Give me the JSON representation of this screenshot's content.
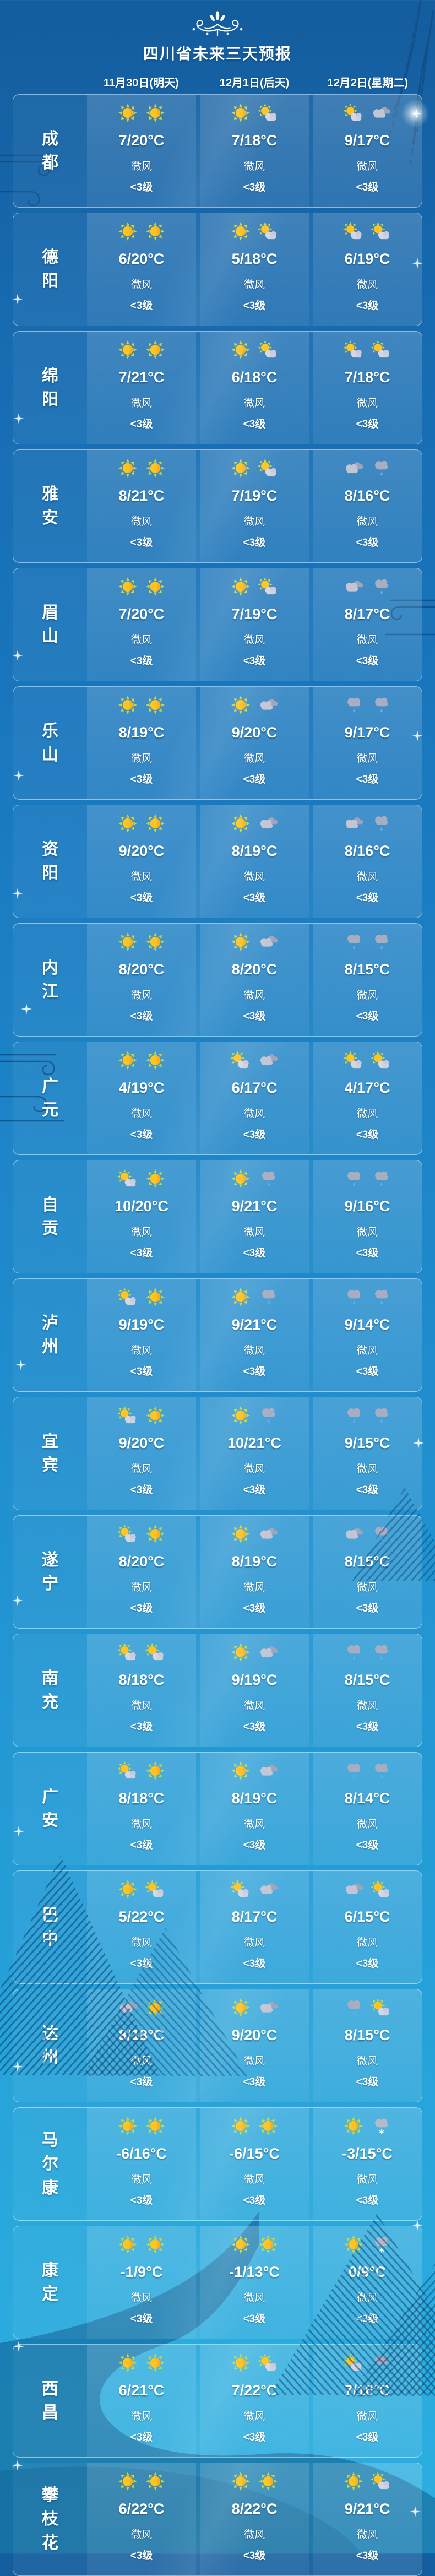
{
  "header": {
    "title": "四川省未来三天预报"
  },
  "columns": [
    "11月30日(明天)",
    "12月1日(后天)",
    "12月2日(星期二)"
  ],
  "wind": {
    "label": "微风",
    "level": "<3级"
  },
  "icon_types": {
    "sun": "sun-icon",
    "sun-cloud": "sun-behind-cloud-icon",
    "cloud": "overcast-clouds-icon",
    "rain": "rain-cloud-icon",
    "snow": "snow-cloud-icon"
  },
  "colors": {
    "bg_top": "#145d9e",
    "bg_bottom": "#2cafe0",
    "sun_yellow": "#ffc41f",
    "sun_ray": "#c8d838",
    "cloud_light": "#d7d7e3",
    "cloud_dark": "#9fa4ba",
    "rain_drop": "#64aee8",
    "panel_border": "rgba(255,255,255,0.5)"
  },
  "cities": [
    {
      "name": "成都",
      "days": [
        {
          "icons": [
            "sun",
            "sun"
          ],
          "temp": "7/20°C"
        },
        {
          "icons": [
            "sun",
            "sun-cloud"
          ],
          "temp": "7/18°C"
        },
        {
          "icons": [
            "sun-cloud",
            "cloud"
          ],
          "temp": "9/17°C"
        }
      ]
    },
    {
      "name": "德阳",
      "days": [
        {
          "icons": [
            "sun",
            "sun"
          ],
          "temp": "6/20°C"
        },
        {
          "icons": [
            "sun",
            "sun-cloud"
          ],
          "temp": "5/18°C"
        },
        {
          "icons": [
            "sun-cloud",
            "sun-cloud"
          ],
          "temp": "6/19°C"
        }
      ]
    },
    {
      "name": "绵阳",
      "days": [
        {
          "icons": [
            "sun",
            "sun"
          ],
          "temp": "7/21°C"
        },
        {
          "icons": [
            "sun",
            "sun-cloud"
          ],
          "temp": "6/18°C"
        },
        {
          "icons": [
            "sun-cloud",
            "sun-cloud"
          ],
          "temp": "7/18°C"
        }
      ]
    },
    {
      "name": "雅安",
      "days": [
        {
          "icons": [
            "sun",
            "sun"
          ],
          "temp": "8/21°C"
        },
        {
          "icons": [
            "sun",
            "sun-cloud"
          ],
          "temp": "7/19°C"
        },
        {
          "icons": [
            "cloud",
            "rain"
          ],
          "temp": "8/16°C"
        }
      ]
    },
    {
      "name": "眉山",
      "days": [
        {
          "icons": [
            "sun",
            "sun"
          ],
          "temp": "7/20°C"
        },
        {
          "icons": [
            "sun",
            "sun-cloud"
          ],
          "temp": "7/19°C"
        },
        {
          "icons": [
            "cloud",
            "rain"
          ],
          "temp": "8/17°C"
        }
      ]
    },
    {
      "name": "乐山",
      "days": [
        {
          "icons": [
            "sun",
            "sun"
          ],
          "temp": "8/19°C"
        },
        {
          "icons": [
            "sun",
            "cloud"
          ],
          "temp": "9/20°C"
        },
        {
          "icons": [
            "rain",
            "rain"
          ],
          "temp": "9/17°C"
        }
      ]
    },
    {
      "name": "资阳",
      "days": [
        {
          "icons": [
            "sun",
            "sun"
          ],
          "temp": "9/20°C"
        },
        {
          "icons": [
            "sun",
            "cloud"
          ],
          "temp": "8/19°C"
        },
        {
          "icons": [
            "cloud",
            "rain"
          ],
          "temp": "8/16°C"
        }
      ]
    },
    {
      "name": "内江",
      "days": [
        {
          "icons": [
            "sun",
            "sun"
          ],
          "temp": "8/20°C"
        },
        {
          "icons": [
            "sun",
            "cloud"
          ],
          "temp": "8/20°C"
        },
        {
          "icons": [
            "rain",
            "rain"
          ],
          "temp": "8/15°C"
        }
      ]
    },
    {
      "name": "广元",
      "days": [
        {
          "icons": [
            "sun",
            "sun"
          ],
          "temp": "4/19°C"
        },
        {
          "icons": [
            "sun-cloud",
            "cloud"
          ],
          "temp": "6/17°C"
        },
        {
          "icons": [
            "sun-cloud",
            "sun-cloud"
          ],
          "temp": "4/17°C"
        }
      ]
    },
    {
      "name": "自贡",
      "days": [
        {
          "icons": [
            "sun-cloud",
            "sun"
          ],
          "temp": "10/20°C"
        },
        {
          "icons": [
            "sun",
            "rain"
          ],
          "temp": "9/21°C"
        },
        {
          "icons": [
            "rain",
            "rain"
          ],
          "temp": "9/16°C"
        }
      ]
    },
    {
      "name": "泸州",
      "days": [
        {
          "icons": [
            "sun-cloud",
            "sun"
          ],
          "temp": "9/19°C"
        },
        {
          "icons": [
            "sun",
            "rain"
          ],
          "temp": "9/21°C"
        },
        {
          "icons": [
            "rain",
            "rain"
          ],
          "temp": "9/14°C"
        }
      ]
    },
    {
      "name": "宜宾",
      "days": [
        {
          "icons": [
            "sun-cloud",
            "sun"
          ],
          "temp": "9/20°C"
        },
        {
          "icons": [
            "sun",
            "rain"
          ],
          "temp": "10/21°C"
        },
        {
          "icons": [
            "rain",
            "rain"
          ],
          "temp": "9/15°C"
        }
      ]
    },
    {
      "name": "遂宁",
      "days": [
        {
          "icons": [
            "sun-cloud",
            "sun"
          ],
          "temp": "8/20°C"
        },
        {
          "icons": [
            "sun",
            "cloud"
          ],
          "temp": "8/19°C"
        },
        {
          "icons": [
            "cloud",
            "rain"
          ],
          "temp": "8/15°C"
        }
      ]
    },
    {
      "name": "南充",
      "days": [
        {
          "icons": [
            "sun-cloud",
            "sun-cloud"
          ],
          "temp": "8/18°C"
        },
        {
          "icons": [
            "sun",
            "cloud"
          ],
          "temp": "9/19°C"
        },
        {
          "icons": [
            "rain",
            "rain"
          ],
          "temp": "8/15°C"
        }
      ]
    },
    {
      "name": "广安",
      "days": [
        {
          "icons": [
            "sun-cloud",
            "sun"
          ],
          "temp": "8/18°C"
        },
        {
          "icons": [
            "sun",
            "cloud"
          ],
          "temp": "8/19°C"
        },
        {
          "icons": [
            "rain",
            "rain"
          ],
          "temp": "8/14°C"
        }
      ]
    },
    {
      "name": "巴中",
      "days": [
        {
          "icons": [
            "sun",
            "sun-cloud"
          ],
          "temp": "5/22°C"
        },
        {
          "icons": [
            "sun-cloud",
            "cloud"
          ],
          "temp": "8/17°C"
        },
        {
          "icons": [
            "cloud",
            "sun-cloud"
          ],
          "temp": "6/15°C"
        }
      ]
    },
    {
      "name": "达州",
      "days": [
        {
          "icons": [
            "cloud",
            "sun"
          ],
          "temp": "8/18°C"
        },
        {
          "icons": [
            "sun",
            "cloud"
          ],
          "temp": "9/20°C"
        },
        {
          "icons": [
            "rain",
            "sun-cloud"
          ],
          "temp": "8/15°C"
        }
      ]
    },
    {
      "name": "马尔康",
      "days": [
        {
          "icons": [
            "sun",
            "sun"
          ],
          "temp": "-6/16°C"
        },
        {
          "icons": [
            "sun",
            "sun"
          ],
          "temp": "-6/15°C"
        },
        {
          "icons": [
            "sun",
            "snow"
          ],
          "temp": "-3/15°C"
        }
      ]
    },
    {
      "name": "康定",
      "days": [
        {
          "icons": [
            "sun",
            "sun"
          ],
          "temp": "-1/9°C"
        },
        {
          "icons": [
            "sun",
            "sun"
          ],
          "temp": "-1/13°C"
        },
        {
          "icons": [
            "sun",
            "snow"
          ],
          "temp": "0/9°C"
        }
      ]
    },
    {
      "name": "西昌",
      "days": [
        {
          "icons": [
            "sun",
            "sun"
          ],
          "temp": "6/21°C"
        },
        {
          "icons": [
            "sun",
            "sun-cloud"
          ],
          "temp": "7/22°C"
        },
        {
          "icons": [
            "sun-cloud",
            "rain"
          ],
          "temp": "7/16°C"
        }
      ]
    },
    {
      "name": "攀枝花",
      "days": [
        {
          "icons": [
            "sun",
            "sun"
          ],
          "temp": "6/22°C"
        },
        {
          "icons": [
            "sun",
            "sun"
          ],
          "temp": "8/22°C"
        },
        {
          "icons": [
            "sun",
            "sun-cloud"
          ],
          "temp": "9/21°C"
        }
      ]
    }
  ]
}
